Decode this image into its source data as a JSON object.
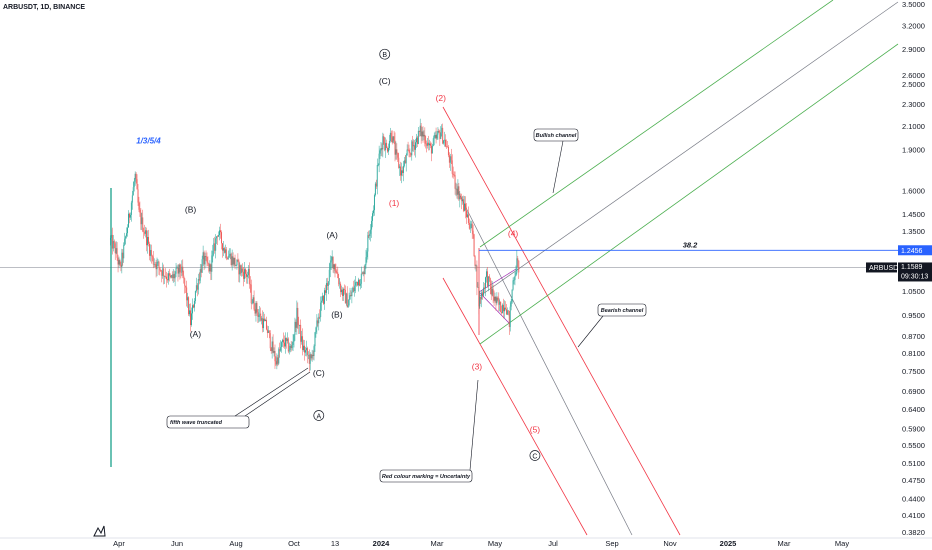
{
  "header": {
    "title": "ARBUSDT, 1D, BINANCE"
  },
  "colors": {
    "up": "#26a69a",
    "down": "#ef5350",
    "red_channel": "#f23645",
    "green_channel": "#4caf50",
    "grey_line": "#787b86",
    "blue_line": "#2962ff",
    "teal_line": "#089981",
    "wave_red": "#f23645",
    "wave_blue": "#2962ff"
  },
  "chart_data": {
    "type": "candlestick",
    "symbol": "ARBUSDT",
    "timeframe": "1D",
    "exchange": "BINANCE",
    "y_scale": "log",
    "ylim": [
      0.37,
      3.6
    ],
    "xlim": [
      "2023-03-10",
      "2025-06-01"
    ],
    "price_ticks": [
      "3.5000",
      "3.2000",
      "2.9000",
      "2.6000",
      "2.5000",
      "2.3000",
      "2.1000",
      "1.9000",
      "1.6000",
      "1.4500",
      "1.3500",
      "1.0500",
      "0.9500",
      "0.8700",
      "0.8100",
      "0.7500",
      "0.6900",
      "0.6400",
      "0.5900",
      "0.5500",
      "0.5100",
      "0.4750",
      "0.4400",
      "0.4100",
      "0.3820"
    ],
    "price_tick_values": [
      3.5,
      3.2,
      2.9,
      2.6,
      2.5,
      2.3,
      2.1,
      1.9,
      1.6,
      1.45,
      1.35,
      1.05,
      0.95,
      0.87,
      0.81,
      0.75,
      0.69,
      0.64,
      0.59,
      0.55,
      0.51,
      0.475,
      0.44,
      0.41,
      0.382
    ],
    "time_ticks": [
      {
        "label": "Apr",
        "date": "2023-04-01",
        "bold": false
      },
      {
        "label": "Jun",
        "date": "2023-06-01",
        "bold": false
      },
      {
        "label": "Aug",
        "date": "2023-08-01",
        "bold": false
      },
      {
        "label": "Oct",
        "date": "2023-10-01",
        "bold": false
      },
      {
        "label": "13",
        "date": "2023-11-13",
        "bold": false
      },
      {
        "label": "2024",
        "date": "2024-01-01",
        "bold": true
      },
      {
        "label": "Mar",
        "date": "2024-03-01",
        "bold": false
      },
      {
        "label": "May",
        "date": "2024-05-01",
        "bold": false
      },
      {
        "label": "Jul",
        "date": "2024-07-01",
        "bold": false
      },
      {
        "label": "Sep",
        "date": "2024-09-01",
        "bold": false
      },
      {
        "label": "Nov",
        "date": "2024-11-01",
        "bold": false
      },
      {
        "label": "2025",
        "date": "2025-01-01",
        "bold": true
      },
      {
        "label": "Mar",
        "date": "2025-03-01",
        "bold": false
      },
      {
        "label": "May",
        "date": "2025-05-01",
        "bold": false
      }
    ],
    "price_path": [
      [
        "2023-03-23",
        1.3
      ],
      [
        "2023-03-28",
        1.25
      ],
      [
        "2023-04-02",
        1.15
      ],
      [
        "2023-04-06",
        1.25
      ],
      [
        "2023-04-12",
        1.45
      ],
      [
        "2023-04-18",
        1.7
      ],
      [
        "2023-04-22",
        1.45
      ],
      [
        "2023-04-28",
        1.35
      ],
      [
        "2023-05-06",
        1.2
      ],
      [
        "2023-05-15",
        1.15
      ],
      [
        "2023-05-25",
        1.1
      ],
      [
        "2023-06-05",
        1.15
      ],
      [
        "2023-06-10",
        1.05
      ],
      [
        "2023-06-15",
        0.92
      ],
      [
        "2023-06-20",
        1.05
      ],
      [
        "2023-06-28",
        1.2
      ],
      [
        "2023-07-05",
        1.15
      ],
      [
        "2023-07-13",
        1.35
      ],
      [
        "2023-07-20",
        1.25
      ],
      [
        "2023-07-28",
        1.2
      ],
      [
        "2023-08-05",
        1.15
      ],
      [
        "2023-08-14",
        1.12
      ],
      [
        "2023-08-17",
        1.02
      ],
      [
        "2023-08-25",
        0.95
      ],
      [
        "2023-09-02",
        0.9
      ],
      [
        "2023-09-12",
        0.78
      ],
      [
        "2023-09-20",
        0.85
      ],
      [
        "2023-09-28",
        0.82
      ],
      [
        "2023-10-04",
        0.95
      ],
      [
        "2023-10-10",
        0.83
      ],
      [
        "2023-10-19",
        0.78
      ],
      [
        "2023-10-27",
        0.95
      ],
      [
        "2023-11-03",
        1.05
      ],
      [
        "2023-11-10",
        1.2
      ],
      [
        "2023-11-14",
        1.15
      ],
      [
        "2023-11-20",
        1.05
      ],
      [
        "2023-11-27",
        1.0
      ],
      [
        "2023-12-02",
        1.05
      ],
      [
        "2023-12-07",
        1.1
      ],
      [
        "2023-12-13",
        1.12
      ],
      [
        "2023-12-18",
        1.3
      ],
      [
        "2023-12-24",
        1.5
      ],
      [
        "2023-12-29",
        1.8
      ],
      [
        "2024-01-03",
        2.0
      ],
      [
        "2024-01-07",
        1.9
      ],
      [
        "2024-01-12",
        2.05
      ],
      [
        "2024-01-17",
        1.85
      ],
      [
        "2024-01-23",
        1.72
      ],
      [
        "2024-01-29",
        1.85
      ],
      [
        "2024-02-06",
        1.95
      ],
      [
        "2024-02-12",
        2.05
      ],
      [
        "2024-02-17",
        2.0
      ],
      [
        "2024-02-23",
        1.9
      ],
      [
        "2024-03-01",
        2.0
      ],
      [
        "2024-03-05",
        2.05
      ],
      [
        "2024-03-10",
        1.95
      ],
      [
        "2024-03-15",
        1.8
      ],
      [
        "2024-03-20",
        1.65
      ],
      [
        "2024-03-26",
        1.55
      ],
      [
        "2024-04-01",
        1.45
      ],
      [
        "2024-04-07",
        1.35
      ],
      [
        "2024-04-11",
        1.15
      ],
      [
        "2024-04-14",
        1.0
      ],
      [
        "2024-04-18",
        1.05
      ],
      [
        "2024-04-22",
        1.12
      ],
      [
        "2024-04-27",
        1.05
      ],
      [
        "2024-05-02",
        1.0
      ],
      [
        "2024-05-07",
        0.98
      ],
      [
        "2024-05-12",
        1.0
      ],
      [
        "2024-05-16",
        0.92
      ],
      [
        "2024-05-20",
        1.1
      ],
      [
        "2024-05-24",
        1.18
      ],
      [
        "2024-05-26",
        1.16
      ]
    ],
    "last_price": "1.1589",
    "last_price_value": 1.1589,
    "countdown": "09:30:13",
    "fib_level": {
      "label": "38.2",
      "price": 1.2456,
      "price_label": "1.2456"
    },
    "annotations": [
      {
        "text": "1/3/5/4",
        "date": "2023-05-02",
        "price": 1.95,
        "style": "blue"
      },
      {
        "text": "(B)",
        "date": "2023-06-15",
        "price": 1.46,
        "style": "black"
      },
      {
        "text": "(A)",
        "date": "2023-06-20",
        "price": 0.865,
        "style": "black"
      },
      {
        "text": "(B)",
        "date": "2023-11-15",
        "price": 0.94,
        "style": "black"
      },
      {
        "text": "(A)",
        "date": "2023-11-10",
        "price": 1.31,
        "style": "black"
      },
      {
        "text": "(C)",
        "date": "2023-10-27",
        "price": 0.735,
        "style": "black"
      },
      {
        "text": "(C)",
        "date": "2024-01-05",
        "price": 2.5,
        "style": "black"
      },
      {
        "text": "B",
        "date": "2024-01-05",
        "price": 2.8,
        "style": "circle"
      },
      {
        "text": "A",
        "date": "2023-10-27",
        "price": 0.615,
        "style": "circle"
      },
      {
        "text": "(2)",
        "date": "2024-03-05",
        "price": 2.33,
        "style": "red"
      },
      {
        "text": "(1)",
        "date": "2024-01-15",
        "price": 1.5,
        "style": "red"
      },
      {
        "text": "(4)",
        "date": "2024-05-20",
        "price": 1.32,
        "style": "red"
      },
      {
        "text": "(3)",
        "date": "2024-04-12",
        "price": 0.755,
        "style": "red"
      },
      {
        "text": "(5)",
        "date": "2024-06-12",
        "price": 0.58,
        "style": "red"
      },
      {
        "text": "C",
        "date": "2024-06-12",
        "price": 0.52,
        "style": "circle"
      }
    ],
    "callouts": [
      {
        "text": "Bullish channel",
        "price": 1.76
      },
      {
        "text": "Bearish channel",
        "price": 0.953
      },
      {
        "text": "fifth wave truncated",
        "price": 0.608
      },
      {
        "text": "Red colour marking = Uncertainty",
        "price": 0.47
      }
    ]
  }
}
